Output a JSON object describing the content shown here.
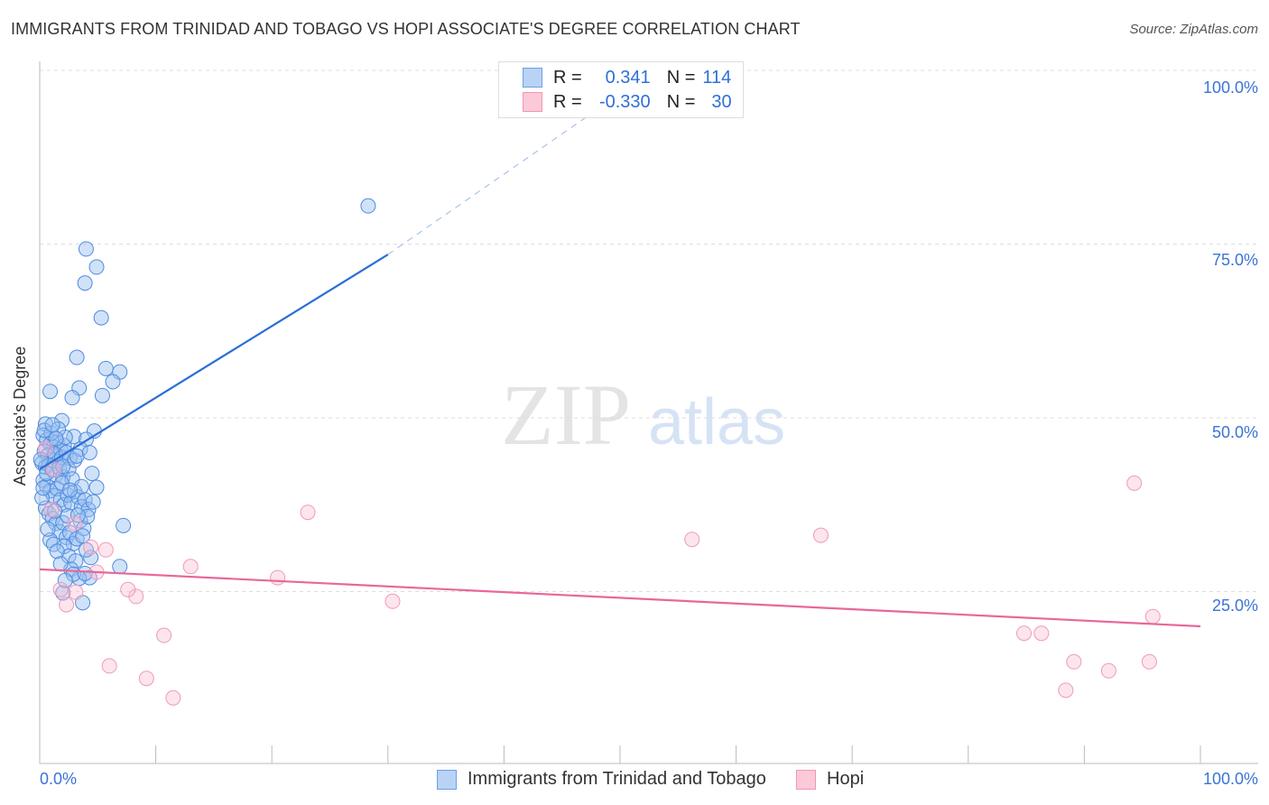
{
  "header": {
    "title": "IMMIGRANTS FROM TRINIDAD AND TOBAGO VS HOPI ASSOCIATE'S DEGREE CORRELATION CHART",
    "source": "Source: ZipAtlas.com"
  },
  "legend": {
    "r_label": "R =",
    "n_label": "N =",
    "series": [
      {
        "r": "0.341",
        "n": "114"
      },
      {
        "r": "-0.330",
        "n": "30"
      }
    ]
  },
  "watermark": "ZIPatlas",
  "colors": {
    "blue": "#5b93e6",
    "blue_line": "#2a6fd6",
    "pink": "#f29bb8",
    "pink_line": "#e8679a",
    "axis_text": "#3b73d6"
  },
  "chart_data": {
    "type": "scatter",
    "title": "IMMIGRANTS FROM TRINIDAD AND TOBAGO VS HOPI ASSOCIATE'S DEGREE CORRELATION CHART",
    "xlabel": "",
    "ylabel": "Associate's Degree",
    "xlim": [
      0,
      100
    ],
    "ylim": [
      0,
      100
    ],
    "x_tick_labels": [
      "0.0%",
      "100.0%"
    ],
    "y_ticks": [
      25,
      50,
      75,
      100
    ],
    "y_tick_labels": [
      "25.0%",
      "50.0%",
      "75.0%",
      "100.0%"
    ],
    "grid": true,
    "legend_placement": "top-center",
    "series": [
      {
        "name": "Immigrants from Trinidad and Tobago",
        "trend": [
          [
            0,
            42.6
          ],
          [
            30,
            73.5
          ]
        ],
        "trend_ext": [
          [
            30,
            73.5
          ],
          [
            51,
            97.8
          ]
        ],
        "points": [
          [
            28.3,
            80.5
          ],
          [
            4.0,
            74.3
          ],
          [
            4.9,
            71.7
          ],
          [
            3.9,
            69.4
          ],
          [
            5.3,
            64.4
          ],
          [
            3.2,
            58.7
          ],
          [
            5.7,
            57.1
          ],
          [
            6.9,
            56.6
          ],
          [
            6.3,
            55.2
          ],
          [
            0.9,
            53.8
          ],
          [
            3.4,
            54.3
          ],
          [
            5.4,
            53.2
          ],
          [
            2.8,
            52.9
          ],
          [
            1.9,
            49.6
          ],
          [
            0.5,
            49.1
          ],
          [
            4.7,
            48.1
          ],
          [
            2.95,
            47.3
          ],
          [
            4.0,
            46.9
          ],
          [
            7.2,
            34.5
          ],
          [
            6.9,
            28.6
          ],
          [
            4.4,
            29.9
          ],
          [
            4.9,
            40.0
          ],
          [
            4.3,
            27.0
          ],
          [
            3.7,
            23.4
          ],
          [
            2.0,
            24.8
          ],
          [
            0.3,
            47.5
          ],
          [
            0.6,
            46.8
          ],
          [
            0.9,
            46.2
          ],
          [
            1.2,
            45.8
          ],
          [
            1.5,
            46.5
          ],
          [
            1.8,
            45.4
          ],
          [
            2.1,
            46.0
          ],
          [
            0.4,
            45.2
          ],
          [
            0.7,
            44.6
          ],
          [
            1.0,
            44.0
          ],
          [
            1.3,
            44.8
          ],
          [
            1.6,
            43.7
          ],
          [
            1.9,
            44.3
          ],
          [
            2.3,
            45.0
          ],
          [
            2.6,
            44.2
          ],
          [
            0.2,
            43.5
          ],
          [
            0.5,
            42.9
          ],
          [
            0.8,
            43.2
          ],
          [
            1.1,
            42.5
          ],
          [
            1.4,
            41.8
          ],
          [
            1.7,
            42.8
          ],
          [
            2.0,
            41.5
          ],
          [
            2.5,
            42.6
          ],
          [
            3.0,
            43.9
          ],
          [
            3.5,
            45.5
          ],
          [
            0.3,
            41.0
          ],
          [
            0.6,
            40.2
          ],
          [
            0.9,
            39.5
          ],
          [
            1.2,
            38.8
          ],
          [
            1.5,
            39.8
          ],
          [
            1.8,
            38.2
          ],
          [
            2.1,
            37.5
          ],
          [
            2.4,
            38.9
          ],
          [
            2.7,
            37.8
          ],
          [
            3.0,
            39.4
          ],
          [
            3.3,
            38.6
          ],
          [
            3.6,
            37.2
          ],
          [
            3.9,
            38.2
          ],
          [
            4.2,
            36.8
          ],
          [
            0.5,
            37.0
          ],
          [
            0.8,
            36.2
          ],
          [
            1.1,
            35.5
          ],
          [
            1.4,
            34.8
          ],
          [
            1.7,
            33.6
          ],
          [
            2.0,
            34.9
          ],
          [
            2.3,
            32.8
          ],
          [
            2.6,
            33.5
          ],
          [
            2.9,
            31.9
          ],
          [
            3.2,
            32.6
          ],
          [
            3.5,
            35.2
          ],
          [
            3.8,
            34.1
          ],
          [
            4.1,
            35.8
          ],
          [
            0.9,
            32.4
          ],
          [
            1.2,
            31.8
          ],
          [
            2.1,
            31.5
          ],
          [
            2.5,
            30.1
          ],
          [
            3.1,
            29.4
          ],
          [
            2.7,
            28.2
          ],
          [
            3.4,
            26.9
          ],
          [
            4.6,
            37.9
          ],
          [
            1.0,
            47.8
          ],
          [
            2.2,
            47.2
          ],
          [
            1.6,
            48.4
          ],
          [
            2.8,
            41.2
          ],
          [
            3.6,
            40.1
          ],
          [
            0.2,
            38.5
          ],
          [
            1.3,
            36.6
          ],
          [
            4.5,
            42.0
          ],
          [
            3.2,
            44.5
          ],
          [
            0.1,
            44.0
          ],
          [
            0.4,
            48.2
          ],
          [
            1.9,
            40.6
          ],
          [
            2.4,
            35.9
          ],
          [
            3.7,
            33.0
          ],
          [
            4.0,
            31.0
          ],
          [
            0.7,
            34.0
          ],
          [
            1.5,
            30.8
          ],
          [
            2.9,
            27.5
          ],
          [
            3.3,
            36.0
          ],
          [
            1.1,
            49.0
          ],
          [
            2.0,
            43.0
          ],
          [
            0.6,
            42.0
          ],
          [
            1.4,
            47.0
          ],
          [
            2.6,
            39.6
          ],
          [
            0.3,
            39.9
          ],
          [
            4.3,
            45.0
          ],
          [
            3.9,
            27.6
          ],
          [
            2.2,
            26.6
          ],
          [
            1.8,
            29.0
          ]
        ]
      },
      {
        "name": "Hopi",
        "trend": [
          [
            0,
            28.2
          ],
          [
            100,
            20.0
          ]
        ],
        "points": [
          [
            94.3,
            40.6
          ],
          [
            95.9,
            21.4
          ],
          [
            95.6,
            14.9
          ],
          [
            92.1,
            13.6
          ],
          [
            89.1,
            14.9
          ],
          [
            88.4,
            10.8
          ],
          [
            86.3,
            19.0
          ],
          [
            84.8,
            19.0
          ],
          [
            67.3,
            33.1
          ],
          [
            56.2,
            32.5
          ],
          [
            30.4,
            23.6
          ],
          [
            23.1,
            36.4
          ],
          [
            20.5,
            27.0
          ],
          [
            13.0,
            28.6
          ],
          [
            10.7,
            18.7
          ],
          [
            11.5,
            9.7
          ],
          [
            9.2,
            12.5
          ],
          [
            8.3,
            24.3
          ],
          [
            7.6,
            25.3
          ],
          [
            6.0,
            14.3
          ],
          [
            5.7,
            31.0
          ],
          [
            4.9,
            27.8
          ],
          [
            4.4,
            31.4
          ],
          [
            3.1,
            24.9
          ],
          [
            2.3,
            23.1
          ],
          [
            1.8,
            25.3
          ],
          [
            3.0,
            34.8
          ],
          [
            1.0,
            36.8
          ],
          [
            1.2,
            42.6
          ],
          [
            0.5,
            45.6
          ]
        ]
      }
    ]
  }
}
